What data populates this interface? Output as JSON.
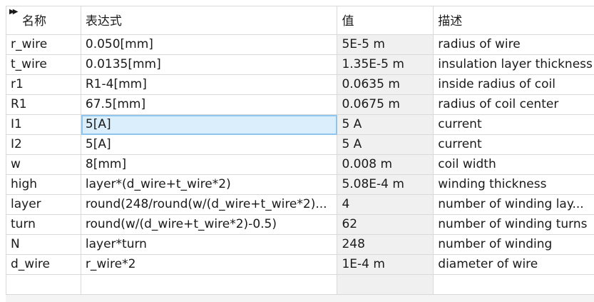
{
  "table": {
    "headers": {
      "name": "名称",
      "expression": "表达式",
      "value": "值",
      "description": "描述"
    },
    "rows": [
      {
        "name": "r_wire",
        "expression": "0.050[mm]",
        "value": "5E-5 m",
        "description": "radius of wire"
      },
      {
        "name": "t_wire",
        "expression": "0.0135[mm]",
        "value": "1.35E-5 m",
        "description": "insulation layer thickness"
      },
      {
        "name": "r1",
        "expression": "R1-4[mm]",
        "value": "0.0635 m",
        "description": "inside radius of coil"
      },
      {
        "name": "R1",
        "expression": "67.5[mm]",
        "value": "0.0675 m",
        "description": "radius of coil center"
      },
      {
        "name": "I1",
        "expression": "5[A]",
        "value": "5 A",
        "description": "current"
      },
      {
        "name": "I2",
        "expression": "5[A]",
        "value": "5 A",
        "description": "current"
      },
      {
        "name": "w",
        "expression": "8[mm]",
        "value": "0.008 m",
        "description": "coil width"
      },
      {
        "name": "high",
        "expression": "layer*(d_wire+t_wire*2)",
        "value": "5.08E-4 m",
        "description": "winding thickness"
      },
      {
        "name": "layer",
        "expression": "round(248/round(w/(d_wire+t_wire*2)...",
        "value": "4",
        "description": "number of winding lay..."
      },
      {
        "name": "turn",
        "expression": "round(w/(d_wire+t_wire*2)-0.5)",
        "value": "62",
        "description": "number of winding turns"
      },
      {
        "name": "N",
        "expression": "layer*turn",
        "value": "248",
        "description": "number of winding"
      },
      {
        "name": "d_wire",
        "expression": "r_wire*2",
        "value": "1E-4 m",
        "description": "diameter of wire"
      }
    ]
  },
  "icons": {
    "expand": "double-triangle-right-icon"
  },
  "colors": {
    "selected_bg": "#dbeefc",
    "selected_border": "#8fc6ef",
    "value_column_bg": "#f0f0f0",
    "grid_line": "#d9d9d9"
  }
}
